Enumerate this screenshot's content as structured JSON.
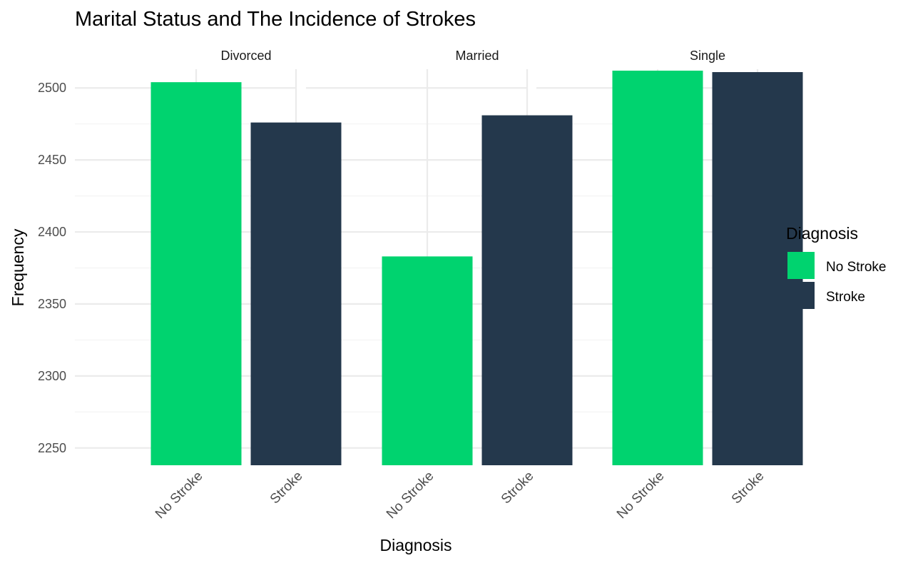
{
  "chart_data": {
    "type": "bar",
    "title": "Marital Status and The Incidence of Strokes",
    "xlabel": "Diagnosis",
    "ylabel": "Frequency",
    "ylim": [
      2238,
      2513
    ],
    "yticks": [
      2250,
      2300,
      2350,
      2400,
      2450,
      2500
    ],
    "categories": [
      "No Stroke",
      "Stroke"
    ],
    "facets": [
      {
        "label": "Divorced",
        "values": [
          2504,
          2476
        ]
      },
      {
        "label": "Married",
        "values": [
          2383,
          2481
        ]
      },
      {
        "label": "Single",
        "values": [
          2512,
          2511
        ]
      }
    ],
    "legend": {
      "title": "Diagnosis",
      "position": "right",
      "entries": [
        {
          "label": "No Stroke",
          "color": "#00d36f"
        },
        {
          "label": "Stroke",
          "color": "#24384c"
        }
      ]
    },
    "grid": true
  }
}
